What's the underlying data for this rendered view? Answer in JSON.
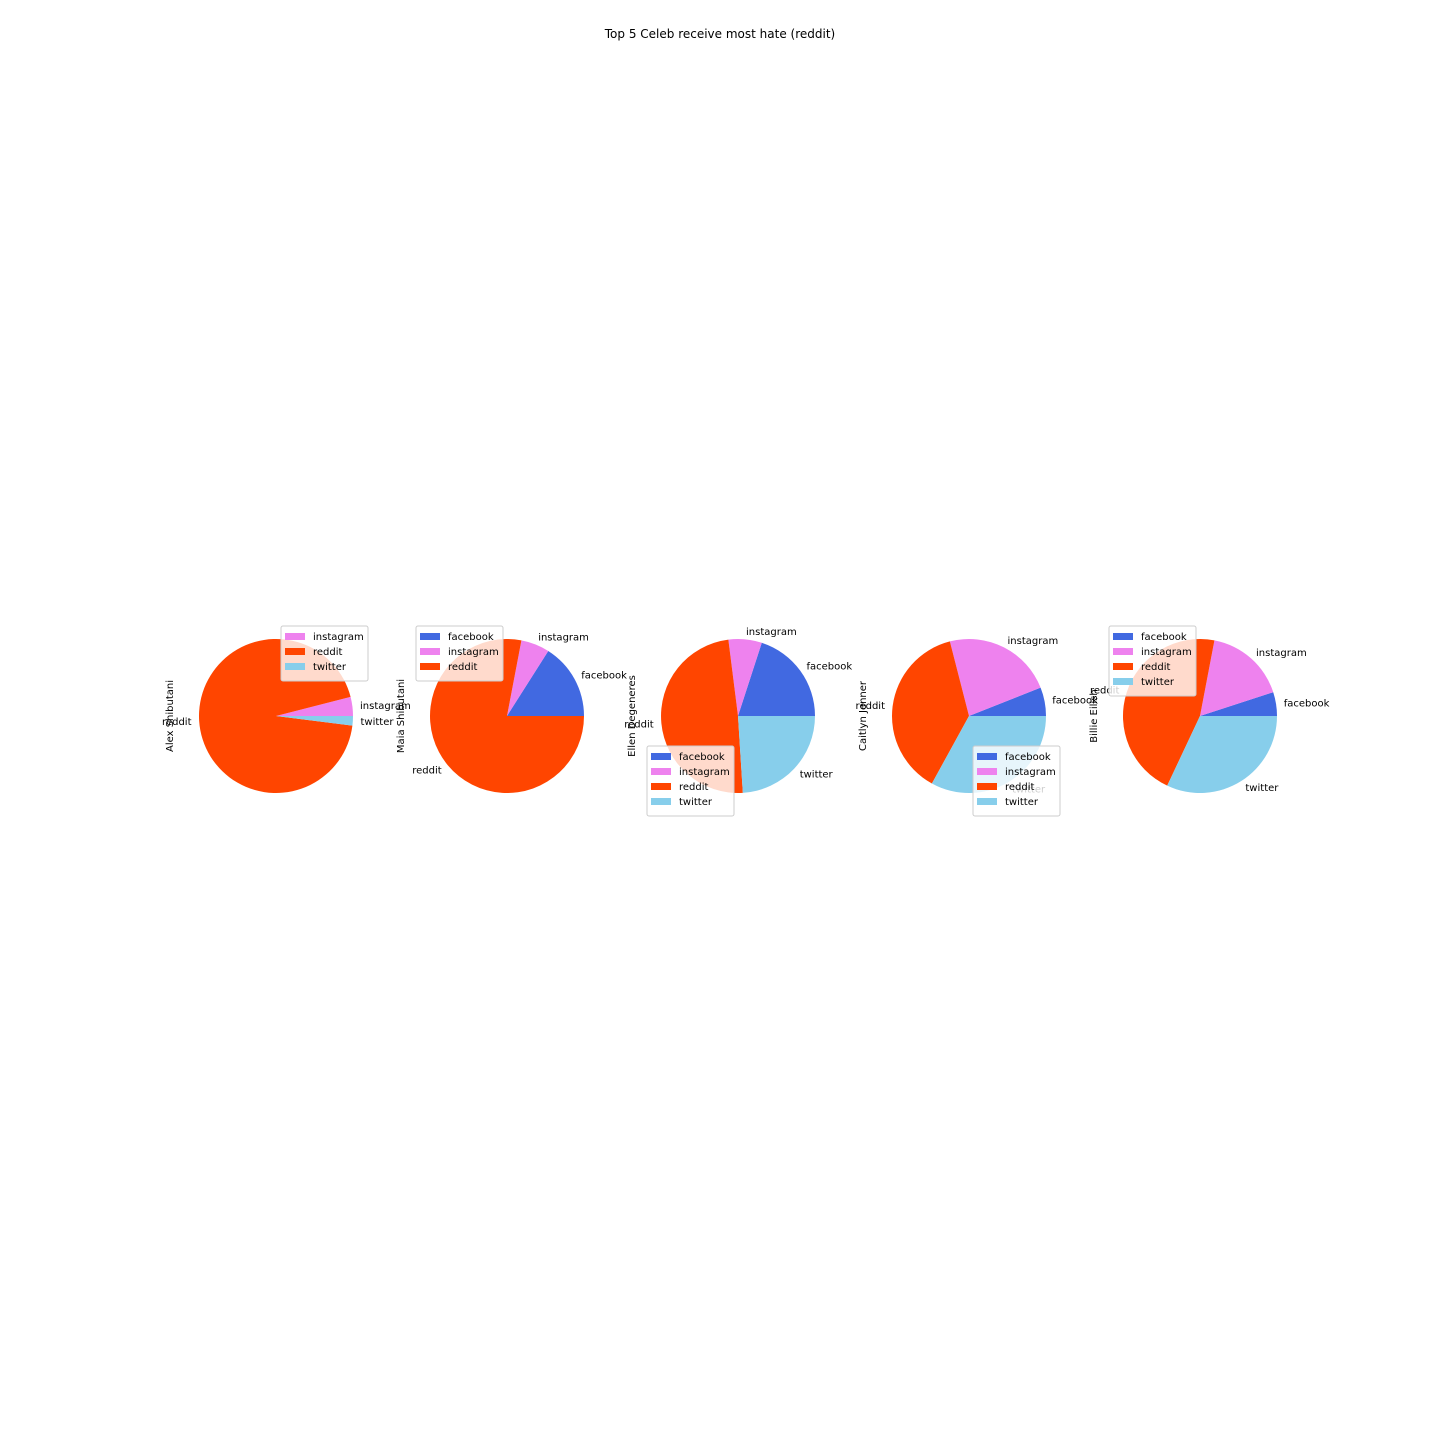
{
  "title": "Top 5 Celeb receive most hate (reddit)",
  "colors": {
    "facebook": "#4169e1",
    "instagram": "#ee82ee",
    "reddit": "#ff4500",
    "twitter": "#87ceeb"
  },
  "chart_data": [
    {
      "type": "pie",
      "ylabel": "Alex Shibutani",
      "labels": [
        "instagram",
        "reddit",
        "twitter"
      ],
      "values": [
        4,
        94,
        2
      ],
      "legend": [
        "instagram",
        "reddit",
        "twitter"
      ],
      "legend_loc": "upper right"
    },
    {
      "type": "pie",
      "ylabel": "Maia Shibutani",
      "labels": [
        "facebook",
        "instagram",
        "reddit"
      ],
      "values": [
        16,
        6,
        78
      ],
      "legend": [
        "facebook",
        "instagram",
        "reddit"
      ],
      "legend_loc": "upper left"
    },
    {
      "type": "pie",
      "ylabel": "Ellen Degeneres",
      "labels": [
        "facebook",
        "instagram",
        "reddit",
        "twitter"
      ],
      "values": [
        20,
        7,
        49,
        24
      ],
      "legend": [
        "facebook",
        "instagram",
        "reddit",
        "twitter"
      ],
      "legend_loc": "lower left"
    },
    {
      "type": "pie",
      "ylabel": "Caitlyn Jenner",
      "labels": [
        "facebook",
        "instagram",
        "reddit",
        "twitter"
      ],
      "values": [
        6,
        23,
        38,
        33
      ],
      "legend": [
        "facebook",
        "instagram",
        "reddit",
        "twitter"
      ],
      "legend_loc": "lower right"
    },
    {
      "type": "pie",
      "ylabel": "Billie Eilish",
      "labels": [
        "facebook",
        "instagram",
        "reddit",
        "twitter"
      ],
      "values": [
        5,
        17,
        46,
        32
      ],
      "legend": [
        "facebook",
        "instagram",
        "reddit",
        "twitter"
      ],
      "legend_loc": "upper left"
    }
  ]
}
